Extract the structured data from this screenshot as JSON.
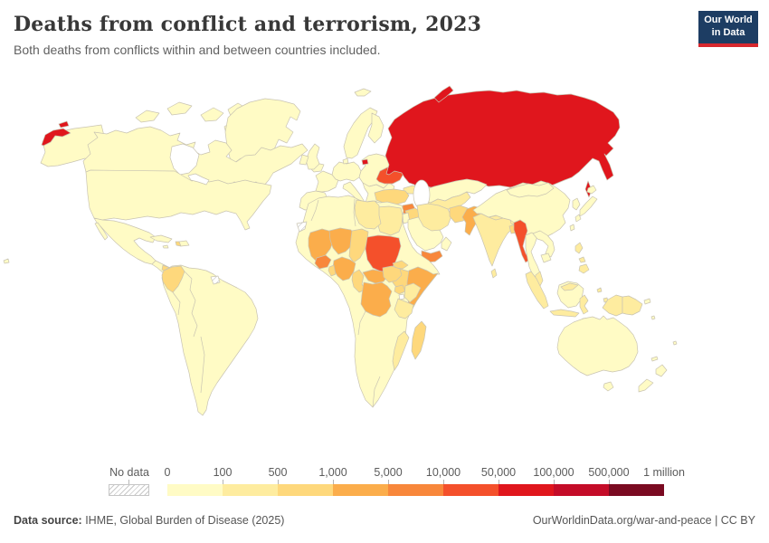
{
  "header": {
    "title": "Deaths from conflict and terrorism, 2023",
    "subtitle": "Both deaths from conflicts within and between countries included.",
    "logo": {
      "line1": "Our World",
      "line2": "in Data",
      "bg": "#1d3d63",
      "accent": "#d7282e"
    }
  },
  "legend": {
    "no_data_label": "No data",
    "tick_labels": [
      "0",
      "100",
      "500",
      "1,000",
      "5,000",
      "10,000",
      "50,000",
      "100,000",
      "500,000",
      "1 million"
    ]
  },
  "footer": {
    "source_label": "Data source:",
    "source_text": " IHME, Global Burden of Disease (2025)",
    "right_text": "OurWorldinData.org/war-and-peace | CC BY"
  },
  "chart_data": {
    "type": "heatmap",
    "subtype": "choropleth world map",
    "title": "Deaths from conflict and terrorism, 2023",
    "subtitle": "Both deaths from conflicts within and between countries included.",
    "year": 2023,
    "unit": "deaths",
    "scale": "log-binned",
    "legend_position": "bottom",
    "map_border_color": "#c9c4b2",
    "ocean_color": "#ffffff",
    "bin_labels": [
      "0–100",
      "100–500",
      "500–1,000",
      "1,000–5,000",
      "5,000–10,000",
      "10,000–50,000",
      "50,000–100,000",
      "100,000–500,000",
      "500,000–1 million"
    ],
    "bin_colors": [
      "#FFFBC5",
      "#FEEC9F",
      "#FED87C",
      "#FBAD4B",
      "#F8873B",
      "#F4502B",
      "#E0161D",
      "#C40C28",
      "#7A0A21"
    ],
    "no_data_entities": [
      "Western Sahara",
      "French Guiana"
    ],
    "entities": {
      "Alaska": 0,
      "Canada": 0,
      "Greenland": 0,
      "Iceland": 0,
      "United States": 0,
      "Mexico": 0,
      "Central America": 0,
      "Honduras": 2,
      "Cuba": 0,
      "Jamaica": 0,
      "Haiti": 2,
      "Dominican Republic": 0,
      "South America": 0,
      "Colombia": 2,
      "Iberia": 0,
      "France": 0,
      "United Kingdom": 0,
      "Ireland": 0,
      "Central Europe": 0,
      "Italy": 0,
      "Scandinavia": 0,
      "Finland": 0,
      "Denmark": 0,
      "Eastern Europe": 0,
      "Balkans": 0,
      "Svalbard": 0,
      "Ukraine": 5,
      "Russia": 6,
      "Kazakhstan": 0,
      "Central Asia": 1,
      "Caucasus": 1,
      "Turkey": 2,
      "Syria": 4,
      "Iraq": 2,
      "Palestine": 5,
      "Jordan": 0,
      "Saudi Arabia": 0,
      "Yemen": 4,
      "Oman": 0,
      "Iran": 1,
      "Afghanistan": 2,
      "Pakistan": 3,
      "India": 1,
      "Nepal": 1,
      "Bangladesh": 2,
      "Sri Lanka": 1,
      "China": 0,
      "Mongolia": 0,
      "Korea": 0,
      "Japan": 0,
      "Taiwan": 0,
      "Myanmar": 5,
      "Thailand": 0,
      "Laos and Vietnam": 0,
      "Cambodia": 0,
      "Malaysia": 1,
      "Sumatra": 1,
      "Java": 1,
      "Borneo": 0,
      "Sulawesi": 1,
      "Maluku": 1,
      "Lesser Sunda": 1,
      "Timor": 0,
      "Philippines": 1,
      "Indonesian Papua": 1,
      "Papua New Guinea": 1,
      "Australia": 0,
      "Tasmania": 0,
      "New Zealand": 0,
      "Pacific Islands": 0,
      "Africa": 0,
      "Mali": 3,
      "Burkina Faso": 4,
      "Niger": 3,
      "Chad": 2,
      "Sudan": 5,
      "Egypt": 1,
      "Libya": 1,
      "Eritrea": 2,
      "Ethiopia": 2,
      "Somalia": 3,
      "Nigeria": 3,
      "Benin and Togo": 2,
      "Cameroon": 2,
      "Central African Republic": 3,
      "South Sudan": 2,
      "Uganda": 2,
      "Kenya": 1,
      "DR Congo": 3,
      "Tanzania": 1,
      "Mozambique": 1,
      "Madagascar": 2
    }
  }
}
